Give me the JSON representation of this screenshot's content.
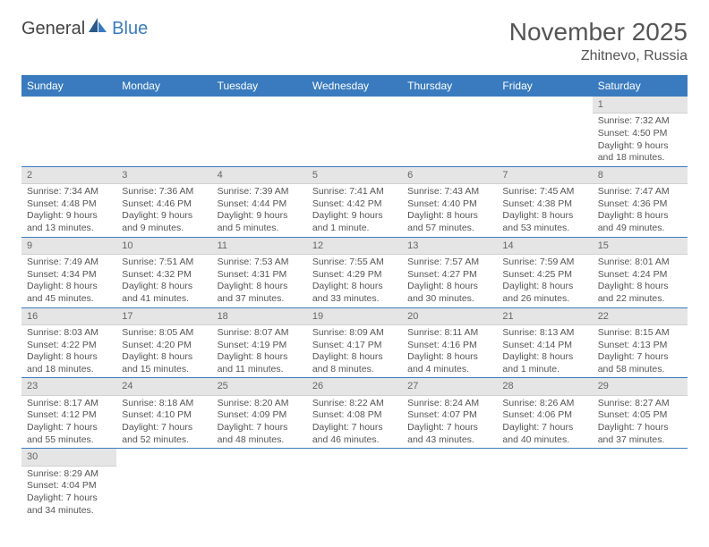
{
  "logo": {
    "part1": "General",
    "part2": "Blue"
  },
  "title": "November 2025",
  "location": "Zhitnevo, Russia",
  "colors": {
    "header_bg": "#3a7bbf",
    "header_text": "#ffffff",
    "daynum_bg": "#e5e5e5",
    "border": "#3a7bbf",
    "text": "#555555"
  },
  "weekdays": [
    "Sunday",
    "Monday",
    "Tuesday",
    "Wednesday",
    "Thursday",
    "Friday",
    "Saturday"
  ],
  "grid": [
    [
      null,
      null,
      null,
      null,
      null,
      null,
      {
        "n": "1",
        "sunrise": "Sunrise: 7:32 AM",
        "sunset": "Sunset: 4:50 PM",
        "day1": "Daylight: 9 hours",
        "day2": "and 18 minutes."
      }
    ],
    [
      {
        "n": "2",
        "sunrise": "Sunrise: 7:34 AM",
        "sunset": "Sunset: 4:48 PM",
        "day1": "Daylight: 9 hours",
        "day2": "and 13 minutes."
      },
      {
        "n": "3",
        "sunrise": "Sunrise: 7:36 AM",
        "sunset": "Sunset: 4:46 PM",
        "day1": "Daylight: 9 hours",
        "day2": "and 9 minutes."
      },
      {
        "n": "4",
        "sunrise": "Sunrise: 7:39 AM",
        "sunset": "Sunset: 4:44 PM",
        "day1": "Daylight: 9 hours",
        "day2": "and 5 minutes."
      },
      {
        "n": "5",
        "sunrise": "Sunrise: 7:41 AM",
        "sunset": "Sunset: 4:42 PM",
        "day1": "Daylight: 9 hours",
        "day2": "and 1 minute."
      },
      {
        "n": "6",
        "sunrise": "Sunrise: 7:43 AM",
        "sunset": "Sunset: 4:40 PM",
        "day1": "Daylight: 8 hours",
        "day2": "and 57 minutes."
      },
      {
        "n": "7",
        "sunrise": "Sunrise: 7:45 AM",
        "sunset": "Sunset: 4:38 PM",
        "day1": "Daylight: 8 hours",
        "day2": "and 53 minutes."
      },
      {
        "n": "8",
        "sunrise": "Sunrise: 7:47 AM",
        "sunset": "Sunset: 4:36 PM",
        "day1": "Daylight: 8 hours",
        "day2": "and 49 minutes."
      }
    ],
    [
      {
        "n": "9",
        "sunrise": "Sunrise: 7:49 AM",
        "sunset": "Sunset: 4:34 PM",
        "day1": "Daylight: 8 hours",
        "day2": "and 45 minutes."
      },
      {
        "n": "10",
        "sunrise": "Sunrise: 7:51 AM",
        "sunset": "Sunset: 4:32 PM",
        "day1": "Daylight: 8 hours",
        "day2": "and 41 minutes."
      },
      {
        "n": "11",
        "sunrise": "Sunrise: 7:53 AM",
        "sunset": "Sunset: 4:31 PM",
        "day1": "Daylight: 8 hours",
        "day2": "and 37 minutes."
      },
      {
        "n": "12",
        "sunrise": "Sunrise: 7:55 AM",
        "sunset": "Sunset: 4:29 PM",
        "day1": "Daylight: 8 hours",
        "day2": "and 33 minutes."
      },
      {
        "n": "13",
        "sunrise": "Sunrise: 7:57 AM",
        "sunset": "Sunset: 4:27 PM",
        "day1": "Daylight: 8 hours",
        "day2": "and 30 minutes."
      },
      {
        "n": "14",
        "sunrise": "Sunrise: 7:59 AM",
        "sunset": "Sunset: 4:25 PM",
        "day1": "Daylight: 8 hours",
        "day2": "and 26 minutes."
      },
      {
        "n": "15",
        "sunrise": "Sunrise: 8:01 AM",
        "sunset": "Sunset: 4:24 PM",
        "day1": "Daylight: 8 hours",
        "day2": "and 22 minutes."
      }
    ],
    [
      {
        "n": "16",
        "sunrise": "Sunrise: 8:03 AM",
        "sunset": "Sunset: 4:22 PM",
        "day1": "Daylight: 8 hours",
        "day2": "and 18 minutes."
      },
      {
        "n": "17",
        "sunrise": "Sunrise: 8:05 AM",
        "sunset": "Sunset: 4:20 PM",
        "day1": "Daylight: 8 hours",
        "day2": "and 15 minutes."
      },
      {
        "n": "18",
        "sunrise": "Sunrise: 8:07 AM",
        "sunset": "Sunset: 4:19 PM",
        "day1": "Daylight: 8 hours",
        "day2": "and 11 minutes."
      },
      {
        "n": "19",
        "sunrise": "Sunrise: 8:09 AM",
        "sunset": "Sunset: 4:17 PM",
        "day1": "Daylight: 8 hours",
        "day2": "and 8 minutes."
      },
      {
        "n": "20",
        "sunrise": "Sunrise: 8:11 AM",
        "sunset": "Sunset: 4:16 PM",
        "day1": "Daylight: 8 hours",
        "day2": "and 4 minutes."
      },
      {
        "n": "21",
        "sunrise": "Sunrise: 8:13 AM",
        "sunset": "Sunset: 4:14 PM",
        "day1": "Daylight: 8 hours",
        "day2": "and 1 minute."
      },
      {
        "n": "22",
        "sunrise": "Sunrise: 8:15 AM",
        "sunset": "Sunset: 4:13 PM",
        "day1": "Daylight: 7 hours",
        "day2": "and 58 minutes."
      }
    ],
    [
      {
        "n": "23",
        "sunrise": "Sunrise: 8:17 AM",
        "sunset": "Sunset: 4:12 PM",
        "day1": "Daylight: 7 hours",
        "day2": "and 55 minutes."
      },
      {
        "n": "24",
        "sunrise": "Sunrise: 8:18 AM",
        "sunset": "Sunset: 4:10 PM",
        "day1": "Daylight: 7 hours",
        "day2": "and 52 minutes."
      },
      {
        "n": "25",
        "sunrise": "Sunrise: 8:20 AM",
        "sunset": "Sunset: 4:09 PM",
        "day1": "Daylight: 7 hours",
        "day2": "and 48 minutes."
      },
      {
        "n": "26",
        "sunrise": "Sunrise: 8:22 AM",
        "sunset": "Sunset: 4:08 PM",
        "day1": "Daylight: 7 hours",
        "day2": "and 46 minutes."
      },
      {
        "n": "27",
        "sunrise": "Sunrise: 8:24 AM",
        "sunset": "Sunset: 4:07 PM",
        "day1": "Daylight: 7 hours",
        "day2": "and 43 minutes."
      },
      {
        "n": "28",
        "sunrise": "Sunrise: 8:26 AM",
        "sunset": "Sunset: 4:06 PM",
        "day1": "Daylight: 7 hours",
        "day2": "and 40 minutes."
      },
      {
        "n": "29",
        "sunrise": "Sunrise: 8:27 AM",
        "sunset": "Sunset: 4:05 PM",
        "day1": "Daylight: 7 hours",
        "day2": "and 37 minutes."
      }
    ],
    [
      {
        "n": "30",
        "sunrise": "Sunrise: 8:29 AM",
        "sunset": "Sunset: 4:04 PM",
        "day1": "Daylight: 7 hours",
        "day2": "and 34 minutes."
      },
      null,
      null,
      null,
      null,
      null,
      null
    ]
  ]
}
